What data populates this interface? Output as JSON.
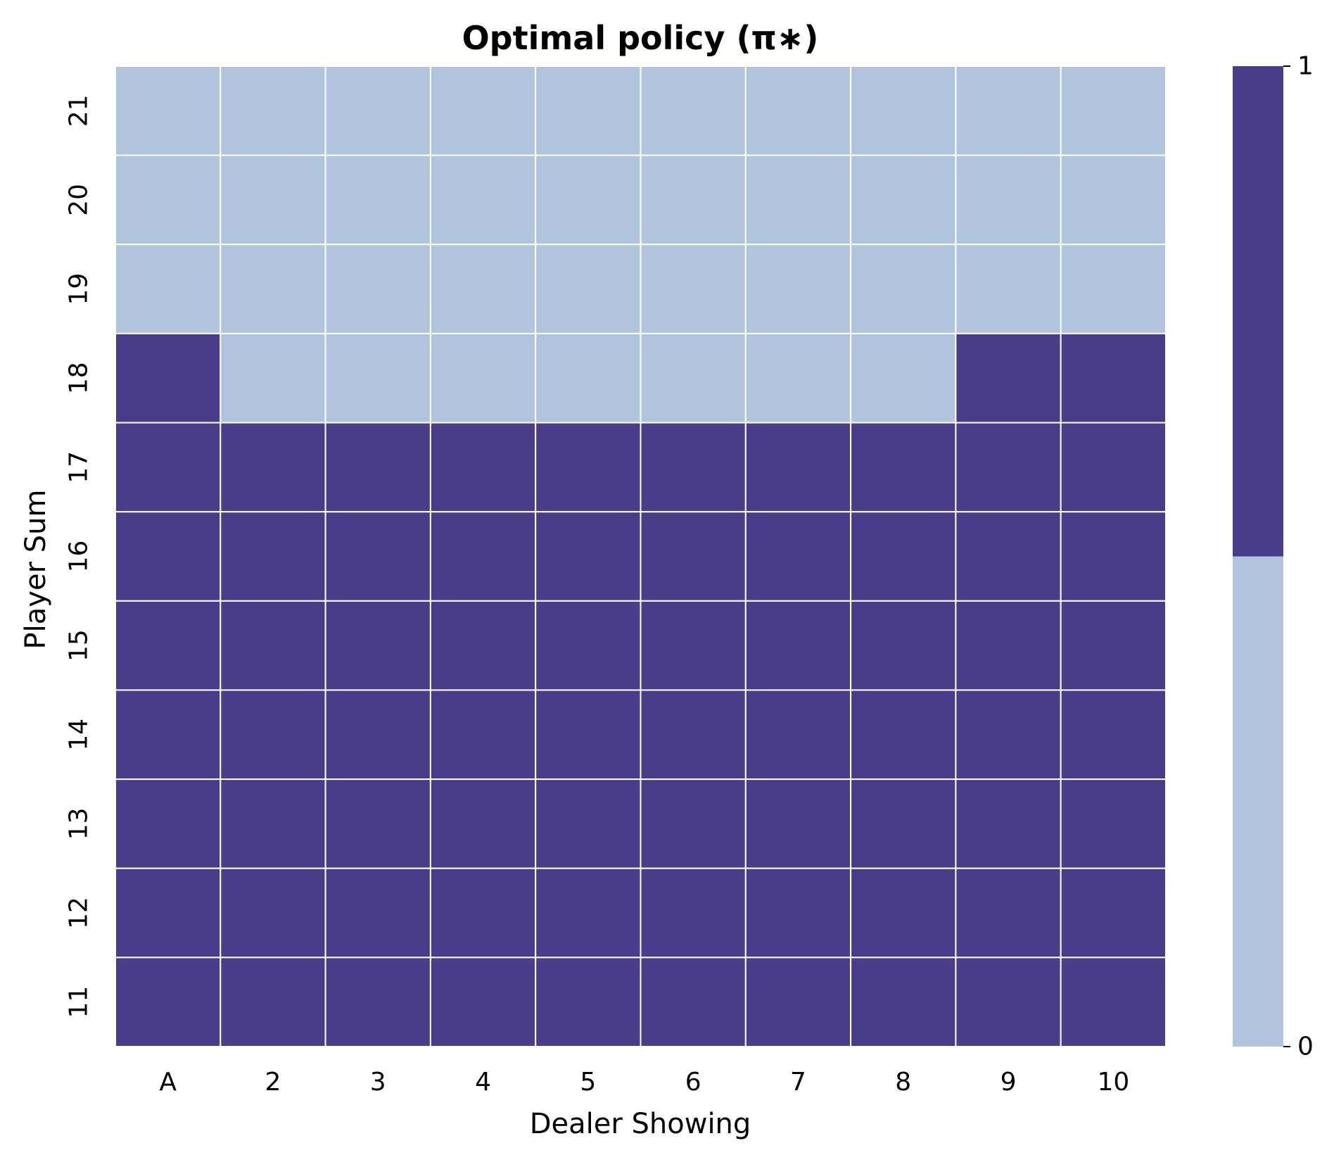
{
  "chart_data": {
    "type": "heatmap",
    "title": "Optimal policy (π∗)",
    "xlabel": "Dealer Showing",
    "ylabel": "Player Sum",
    "x_categories": [
      "A",
      "2",
      "3",
      "4",
      "5",
      "6",
      "7",
      "8",
      "9",
      "10"
    ],
    "y_categories": [
      "21",
      "20",
      "19",
      "18",
      "17",
      "16",
      "15",
      "14",
      "13",
      "12",
      "11"
    ],
    "values": [
      [
        0,
        0,
        0,
        0,
        0,
        0,
        0,
        0,
        0,
        0
      ],
      [
        0,
        0,
        0,
        0,
        0,
        0,
        0,
        0,
        0,
        0
      ],
      [
        0,
        0,
        0,
        0,
        0,
        0,
        0,
        0,
        0,
        0
      ],
      [
        1,
        0,
        0,
        0,
        0,
        0,
        0,
        0,
        1,
        1
      ],
      [
        1,
        1,
        1,
        1,
        1,
        1,
        1,
        1,
        1,
        1
      ],
      [
        1,
        1,
        1,
        1,
        1,
        1,
        1,
        1,
        1,
        1
      ],
      [
        1,
        1,
        1,
        1,
        1,
        1,
        1,
        1,
        1,
        1
      ],
      [
        1,
        1,
        1,
        1,
        1,
        1,
        1,
        1,
        1,
        1
      ],
      [
        1,
        1,
        1,
        1,
        1,
        1,
        1,
        1,
        1,
        1
      ],
      [
        1,
        1,
        1,
        1,
        1,
        1,
        1,
        1,
        1,
        1
      ],
      [
        1,
        1,
        1,
        1,
        1,
        1,
        1,
        1,
        1,
        1
      ]
    ],
    "colormap": {
      "0": "#b0c4de",
      "1": "#483d8b"
    },
    "gridline_color": "#ffffff",
    "colorbar": {
      "ticks": [
        "0",
        "1"
      ],
      "range": [
        0,
        1
      ]
    }
  }
}
